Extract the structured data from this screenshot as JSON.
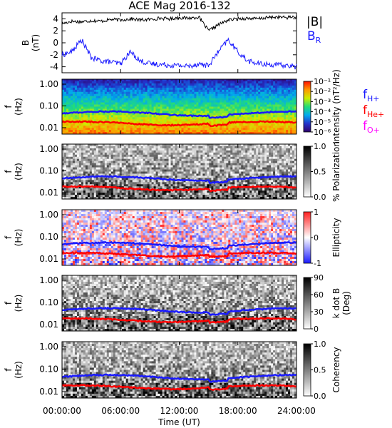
{
  "title": "ACE Mag 2016-132",
  "x_axis": {
    "label": "Time (UT)",
    "ticks": [
      "00:00:00",
      "06:00:00",
      "12:00:00",
      "18:00:00",
      "24:00:00"
    ]
  },
  "freq_legend": [
    {
      "base": "f",
      "sub": "H+",
      "color": "#1a1aff"
    },
    {
      "base": "f",
      "sub": "He+",
      "color": "#ff0000"
    },
    {
      "base": "f",
      "sub": "O+",
      "color": "#ff00ff"
    }
  ],
  "chart_data": [
    {
      "type": "line",
      "title": "ACE Mag 2016-132",
      "ylabel": "B (nT)",
      "ylabel_lines": [
        "B",
        "(nT)"
      ],
      "ylim": [
        -5,
        5
      ],
      "yticks": [
        "4",
        "2",
        "0",
        "-2",
        "-4"
      ],
      "xlabel": "Time (UT)",
      "xlim_hours": [
        0,
        24
      ],
      "series": [
        {
          "name": "|B|",
          "color": "#000000",
          "x": [
            0,
            1,
            2,
            3,
            4,
            5,
            6,
            7,
            8,
            9,
            10,
            11,
            12,
            13,
            14,
            15,
            16,
            17,
            18,
            19,
            20,
            21,
            22,
            23,
            24
          ],
          "values": [
            3.2,
            3.6,
            3.5,
            3.7,
            3.6,
            3.9,
            3.8,
            4.0,
            3.8,
            3.9,
            4.1,
            4.0,
            4.2,
            4.1,
            4.3,
            2.0,
            3.0,
            3.8,
            4.0,
            4.1,
            4.0,
            4.2,
            4.3,
            4.2,
            4.4
          ]
        },
        {
          "name": "B_R",
          "label_base": "B",
          "label_sub": "R",
          "color": "#1a1aff",
          "x": [
            0,
            1,
            2,
            3,
            4,
            5,
            6,
            7,
            8,
            9,
            10,
            11,
            12,
            13,
            14,
            15,
            16,
            17,
            18,
            19,
            20,
            21,
            22,
            23,
            24
          ],
          "values": [
            -2.0,
            -1.5,
            0.5,
            -2.5,
            -3.0,
            -3.2,
            -3.5,
            -1.5,
            -3.0,
            -3.5,
            -3.6,
            -3.7,
            -3.8,
            -3.9,
            -3.5,
            -3.8,
            -1.5,
            0.5,
            -1.5,
            -3.0,
            -3.5,
            -3.6,
            -3.7,
            -3.8,
            -4.0
          ]
        }
      ]
    },
    {
      "type": "heatmap",
      "ylabel_lines": [
        "f",
        "(Hz)"
      ],
      "yticks": [
        "1.00",
        "0.10",
        "0.01"
      ],
      "colorbar": {
        "label": "Intensity (nT²/Hz)",
        "ticks": [
          "10⁻¹",
          "10⁻²",
          "10⁻³",
          "10⁻⁴",
          "10⁻⁵",
          "10⁻⁶"
        ],
        "colors": [
          "#30006a",
          "#2233cc",
          "#00aaee",
          "#22dd77",
          "#ccee00",
          "#ff9900",
          "#ff1100"
        ]
      }
    },
    {
      "type": "heatmap",
      "ylabel_lines": [
        "f",
        "(Hz)"
      ],
      "yticks": [
        "1.00",
        "0.10",
        "0.01"
      ],
      "colorbar": {
        "label": "% Polarization",
        "ticks": [
          "1.0",
          "0.5",
          "0.0"
        ],
        "colors": [
          "#ffffff",
          "#000000"
        ]
      }
    },
    {
      "type": "heatmap",
      "ylabel_lines": [
        "f",
        "(Hz)"
      ],
      "yticks": [
        "1.00",
        "0.10",
        "0.01"
      ],
      "colorbar": {
        "label": "Ellipticity",
        "ticks": [
          "1",
          "0",
          "-1"
        ],
        "colors": [
          "#1a1aff",
          "#ffffff",
          "#ff2020"
        ]
      }
    },
    {
      "type": "heatmap",
      "ylabel_lines": [
        "f",
        "(Hz)"
      ],
      "yticks": [
        "1.00",
        "0.10",
        "0.01"
      ],
      "colorbar": {
        "label": "k dot B (Deg)",
        "label_lines": [
          "k dot B",
          "(Deg)"
        ],
        "ticks": [
          "90",
          "60",
          "30",
          "0"
        ],
        "colors": [
          "#ffffff",
          "#000000"
        ]
      }
    },
    {
      "type": "heatmap",
      "ylabel_lines": [
        "f",
        "(Hz)"
      ],
      "yticks": [
        "1.00",
        "0.10",
        "0.01"
      ],
      "xticks": [
        "00:00:00",
        "06:00:00",
        "12:00:00",
        "18:00:00",
        "24:00:00"
      ],
      "xlabel": "Time (UT)",
      "colorbar": {
        "label": "Coherency",
        "ticks": [
          "1.0",
          "0.5",
          "0.0"
        ],
        "colors": [
          "#ffffff",
          "#000000"
        ]
      }
    }
  ]
}
